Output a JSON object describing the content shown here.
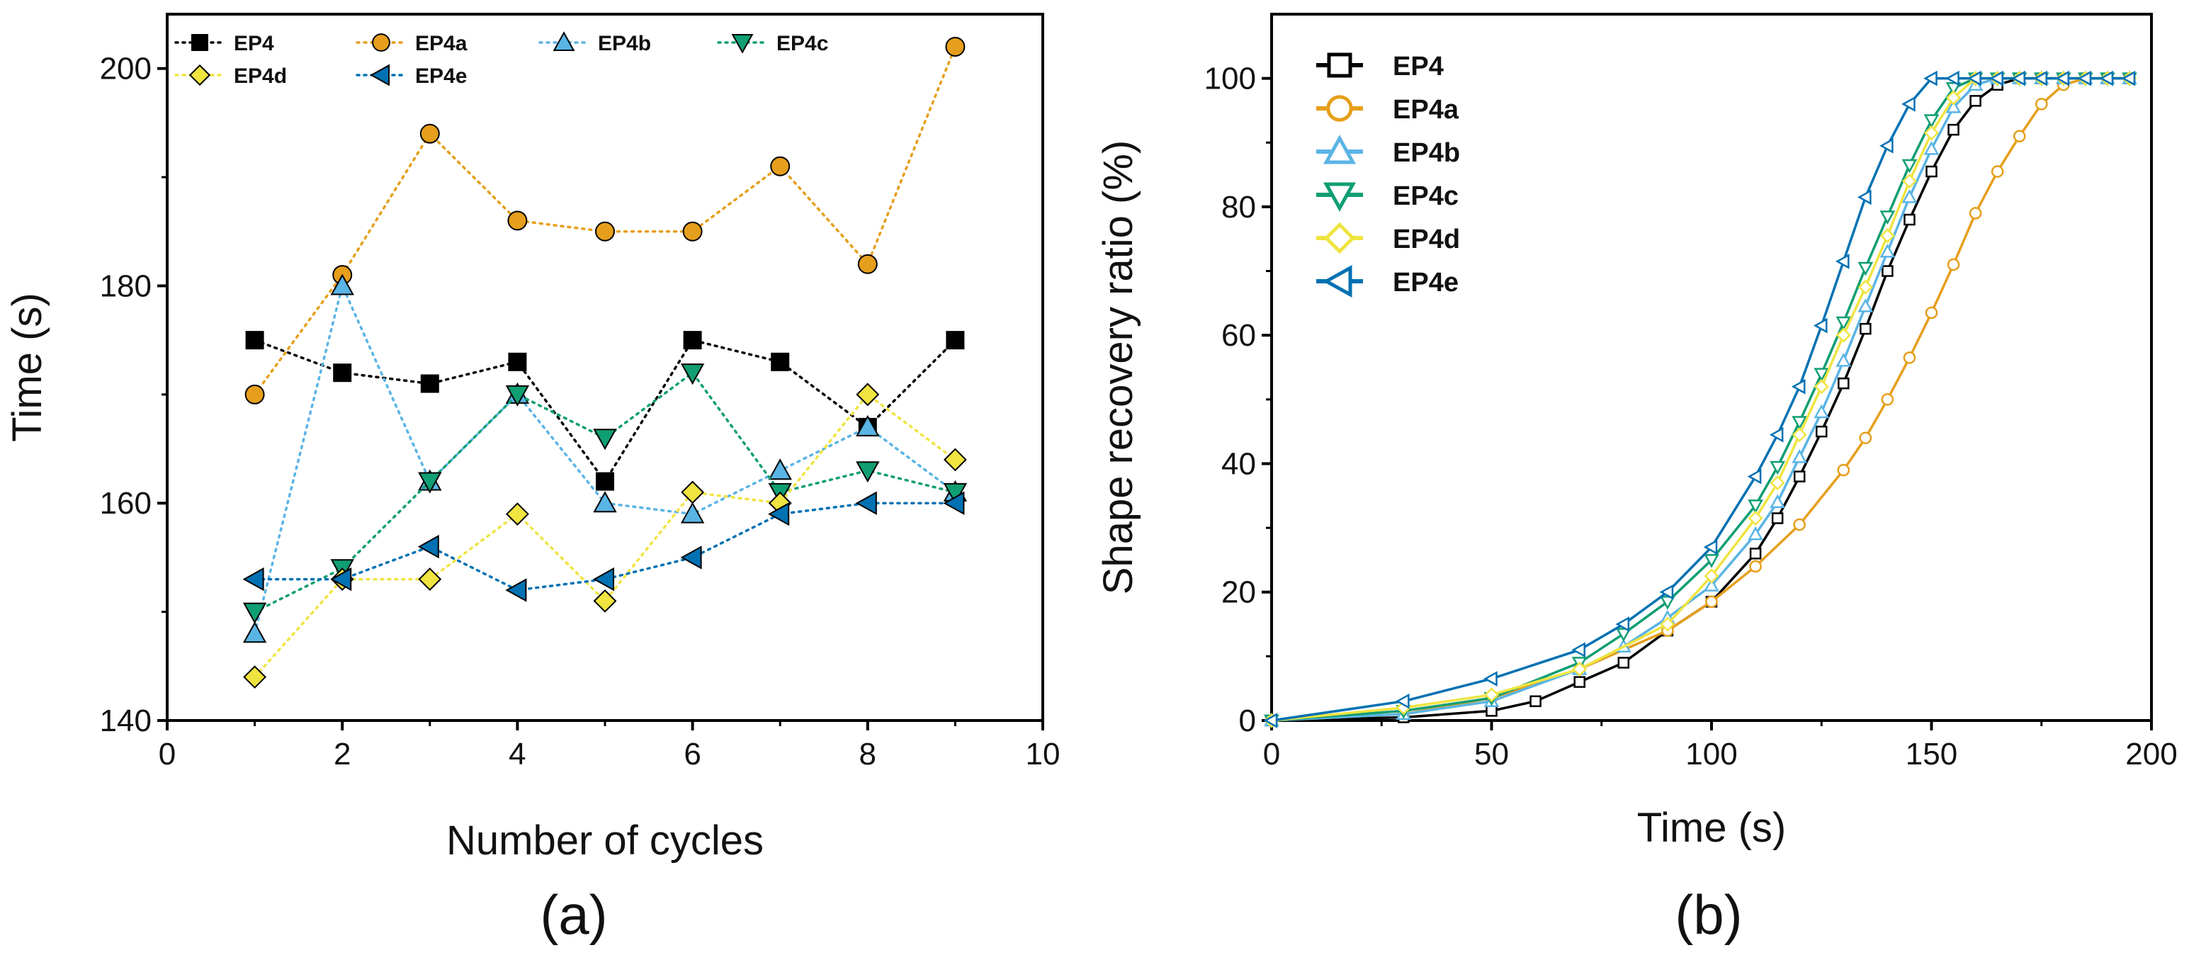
{
  "chart_data": [
    {
      "type": "line",
      "panel": "(a)",
      "xlabel": "Number of cycles",
      "ylabel": "Time (s)",
      "xlim": [
        0,
        10
      ],
      "ylim": [
        140,
        205
      ],
      "xticks": [
        0,
        2,
        4,
        6,
        8,
        10
      ],
      "yticks": [
        140,
        160,
        180,
        200
      ],
      "legend": "top-left",
      "x": [
        1,
        2,
        3,
        4,
        5,
        6,
        7,
        8,
        9
      ],
      "series": [
        {
          "name": "EP4",
          "color": "#000000",
          "marker": "square",
          "values": [
            175,
            172,
            171,
            173,
            162,
            175,
            173,
            167,
            175
          ]
        },
        {
          "name": "EP4a",
          "color": "#E69F1C",
          "marker": "circle",
          "values": [
            170,
            181,
            194,
            186,
            185,
            185,
            191,
            182,
            202
          ]
        },
        {
          "name": "EP4b",
          "color": "#5AB4E5",
          "marker": "triangle-up",
          "values": [
            148,
            180,
            162,
            170,
            160,
            159,
            163,
            167,
            161
          ]
        },
        {
          "name": "EP4c",
          "color": "#109E73",
          "marker": "triangle-down",
          "values": [
            150,
            154,
            162,
            170,
            166,
            172,
            161,
            163,
            161
          ]
        },
        {
          "name": "EP4d",
          "color": "#F0E441",
          "marker": "diamond",
          "values": [
            144,
            153,
            153,
            159,
            151,
            161,
            160,
            170,
            164
          ]
        },
        {
          "name": "EP4e",
          "color": "#0071B2",
          "marker": "triangle-left",
          "values": [
            153,
            153,
            156,
            152,
            153,
            155,
            159,
            160,
            160
          ]
        }
      ]
    },
    {
      "type": "line",
      "panel": "(b)",
      "xlabel": "Time (s)",
      "ylabel": "Shape recovery ratio (%)",
      "xlim": [
        0,
        200
      ],
      "ylim": [
        0,
        110
      ],
      "xticks": [
        0,
        50,
        100,
        150,
        200
      ],
      "yticks": [
        0,
        20,
        40,
        60,
        80,
        100
      ],
      "legend": "top-left",
      "series": [
        {
          "name": "EP4",
          "color": "#000000",
          "marker": "square",
          "x": [
            0,
            30,
            50,
            60,
            70,
            80,
            90,
            100,
            110,
            115,
            120,
            125,
            130,
            135,
            140,
            145,
            150,
            155,
            160,
            165,
            170,
            175,
            180,
            185,
            190,
            195
          ],
          "y": [
            0,
            0.5,
            1.5,
            3,
            6,
            9,
            14,
            18.5,
            26,
            31.5,
            38,
            45,
            52.5,
            61,
            70,
            78,
            85.5,
            92,
            96.5,
            99,
            100,
            100,
            100,
            100,
            100,
            100
          ]
        },
        {
          "name": "EP4a",
          "color": "#E69F1C",
          "marker": "circle",
          "x": [
            0,
            30,
            50,
            70,
            90,
            100,
            110,
            120,
            130,
            135,
            140,
            145,
            150,
            155,
            160,
            165,
            170,
            175,
            180,
            185,
            190,
            195
          ],
          "y": [
            0,
            1,
            3.5,
            8,
            14,
            18.5,
            24,
            30.5,
            39,
            44,
            50,
            56.5,
            63.5,
            71,
            79,
            85.5,
            91,
            96,
            99,
            100,
            100,
            100
          ]
        },
        {
          "name": "EP4b",
          "color": "#5AB4E5",
          "marker": "triangle-up",
          "x": [
            0,
            30,
            50,
            70,
            80,
            90,
            100,
            110,
            115,
            120,
            125,
            130,
            135,
            140,
            145,
            150,
            155,
            160,
            165,
            170,
            175,
            180,
            185,
            190,
            195
          ],
          "y": [
            0,
            1,
            3,
            8,
            11.5,
            16,
            21,
            29,
            34,
            41,
            48,
            56,
            64.5,
            73,
            81.5,
            89,
            95.5,
            99,
            100,
            100,
            100,
            100,
            100,
            100,
            100
          ]
        },
        {
          "name": "EP4c",
          "color": "#109E73",
          "marker": "triangle-down",
          "x": [
            0,
            30,
            50,
            70,
            80,
            90,
            100,
            110,
            115,
            120,
            125,
            130,
            135,
            140,
            145,
            150,
            155,
            160,
            165,
            170,
            175,
            180,
            185,
            190,
            195
          ],
          "y": [
            0,
            1.5,
            3.5,
            9,
            13.5,
            18.5,
            25,
            33.5,
            39.5,
            46.5,
            54,
            62,
            70.5,
            78.5,
            86.5,
            93.5,
            98.5,
            100,
            100,
            100,
            100,
            100,
            100,
            100,
            100
          ]
        },
        {
          "name": "EP4d",
          "color": "#F0E441",
          "marker": "diamond",
          "x": [
            0,
            30,
            50,
            70,
            90,
            100,
            110,
            115,
            120,
            125,
            130,
            135,
            140,
            145,
            150,
            155,
            160,
            165,
            170,
            175,
            180,
            185,
            190,
            195
          ],
          "y": [
            0,
            2,
            4,
            8,
            15,
            22.5,
            31.5,
            37,
            44.5,
            52,
            60,
            67.5,
            75.5,
            84,
            91.5,
            97,
            100,
            100,
            100,
            100,
            100,
            100,
            100,
            100
          ]
        },
        {
          "name": "EP4e",
          "color": "#0071B2",
          "marker": "triangle-left",
          "x": [
            0,
            30,
            50,
            70,
            80,
            90,
            100,
            110,
            115,
            120,
            125,
            130,
            135,
            140,
            145,
            150,
            155,
            160,
            165,
            170,
            175,
            180,
            185,
            190,
            195
          ],
          "y": [
            0,
            3,
            6.5,
            11,
            15,
            20,
            27,
            38,
            44.5,
            52,
            61.5,
            71.5,
            81.5,
            89.5,
            96,
            100,
            100,
            100,
            100,
            100,
            100,
            100,
            100,
            100,
            100
          ]
        }
      ]
    }
  ]
}
